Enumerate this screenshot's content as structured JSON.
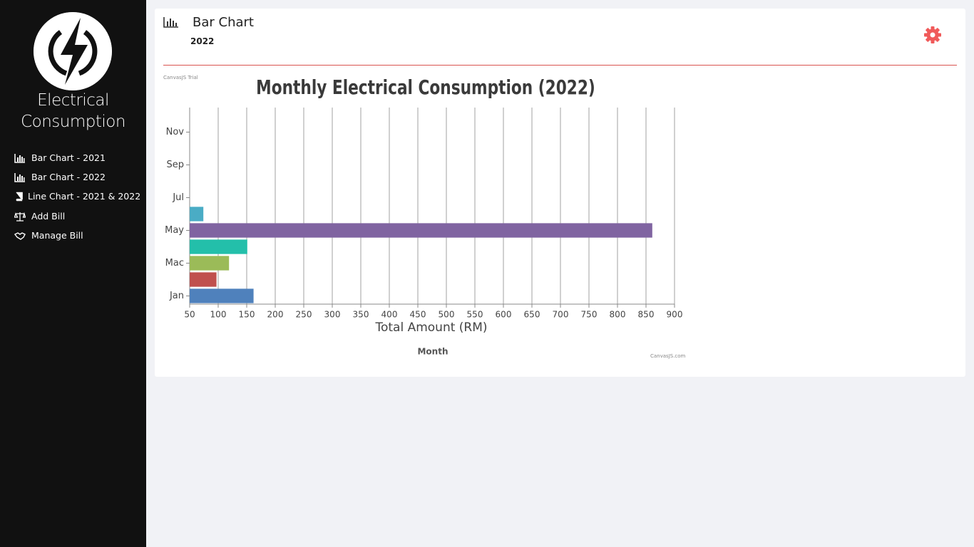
{
  "sidebar": {
    "brand": [
      "Electrical",
      "Consumption"
    ],
    "nav": [
      "Bar Chart - 2021",
      "Bar Chart - 2022",
      "Line Chart - 2021 & 2022",
      "Add Bill",
      "Manage Bill"
    ]
  },
  "header": {
    "title": "Bar Chart",
    "subtitle": "2022"
  },
  "chart_data": {
    "type": "bar",
    "orientation": "horizontal",
    "title": "Monthly Electrical Consumption (2022)",
    "categories": [
      "Jan",
      null,
      "Mac",
      null,
      "May",
      null,
      "Jul",
      null,
      "Sep",
      null,
      "Nov",
      null
    ],
    "values": [
      162,
      97,
      119,
      151,
      861,
      74,
      null,
      null,
      null,
      null,
      null,
      null
    ],
    "colors": [
      "#4f81bc",
      "#c0504e",
      "#9bbb58",
      "#23bfaa",
      "#8064a1",
      "#4aacc5"
    ],
    "xlim": [
      50,
      900
    ],
    "xticks": [
      50,
      100,
      150,
      200,
      250,
      300,
      350,
      400,
      450,
      500,
      550,
      600,
      650,
      700,
      750,
      800,
      850,
      900
    ],
    "x_label": "Total Amount (RM)",
    "y_label": "Month",
    "grid": true,
    "watermarks": [
      "CanvasJS Trial",
      "CanvasJS.com"
    ]
  }
}
